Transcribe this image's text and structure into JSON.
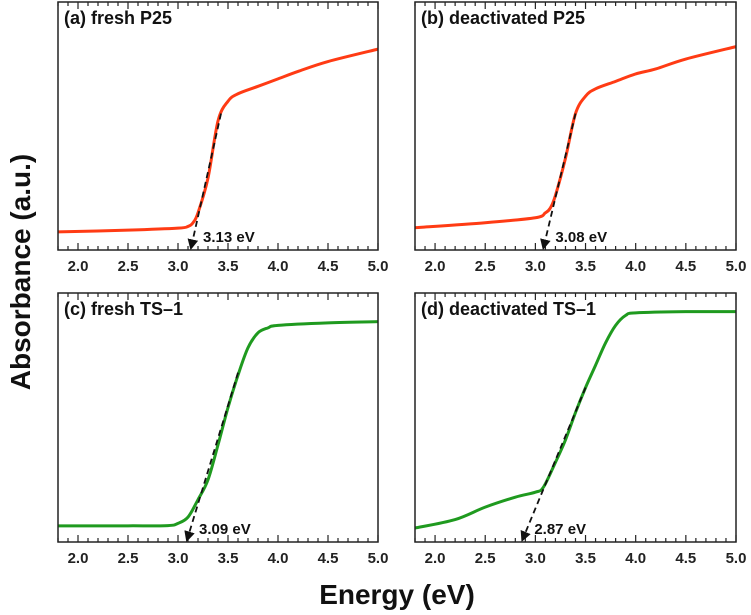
{
  "chart_data": [
    {
      "type": "line",
      "title": "(a) fresh P25",
      "color": "#ff3b14",
      "xlim": [
        1.8,
        5.0
      ],
      "ylim": [
        0,
        1
      ],
      "xticks": [
        "2.0",
        "2.5",
        "3.0",
        "3.5",
        "4.0",
        "4.5",
        "5.0"
      ],
      "x": [
        1.8,
        2.5,
        3.0,
        3.1,
        3.15,
        3.2,
        3.3,
        3.4,
        3.5,
        3.6,
        3.8,
        4.0,
        4.2,
        4.5,
        5.0
      ],
      "y": [
        0.073,
        0.08,
        0.088,
        0.095,
        0.11,
        0.15,
        0.29,
        0.52,
        0.6,
        0.63,
        0.66,
        0.69,
        0.72,
        0.76,
        0.81
      ],
      "band_gap": 3.13,
      "annotation": "3.13 eV",
      "tangent": [
        [
          3.13,
          0.0
        ],
        [
          3.43,
          0.55
        ]
      ]
    },
    {
      "type": "line",
      "title": "(b) deactivated P25",
      "color": "#ff3b14",
      "xlim": [
        1.8,
        5.0
      ],
      "ylim": [
        0,
        1
      ],
      "xticks": [
        "2.0",
        "2.5",
        "3.0",
        "3.5",
        "4.0",
        "4.5",
        "5.0"
      ],
      "x": [
        1.8,
        2.5,
        3.0,
        3.1,
        3.15,
        3.2,
        3.3,
        3.4,
        3.5,
        3.6,
        3.8,
        4.0,
        4.2,
        4.5,
        5.0
      ],
      "y": [
        0.09,
        0.11,
        0.13,
        0.15,
        0.17,
        0.22,
        0.37,
        0.55,
        0.62,
        0.65,
        0.68,
        0.71,
        0.73,
        0.77,
        0.82
      ],
      "band_gap": 3.08,
      "annotation": "3.08 eV",
      "tangent": [
        [
          3.08,
          0.0
        ],
        [
          3.4,
          0.55
        ]
      ]
    },
    {
      "type": "line",
      "title": "(c) fresh TS–1",
      "color": "#1f9a1f",
      "xlim": [
        1.8,
        5.0
      ],
      "ylim": [
        0,
        1
      ],
      "xticks": [
        "2.0",
        "2.5",
        "3.0",
        "3.5",
        "4.0",
        "4.5",
        "5.0"
      ],
      "x": [
        1.8,
        2.5,
        2.9,
        3.0,
        3.1,
        3.2,
        3.3,
        3.4,
        3.5,
        3.6,
        3.7,
        3.8,
        3.9,
        4.0,
        4.5,
        5.0
      ],
      "y": [
        0.065,
        0.065,
        0.066,
        0.075,
        0.1,
        0.17,
        0.25,
        0.39,
        0.54,
        0.67,
        0.78,
        0.84,
        0.86,
        0.87,
        0.88,
        0.885
      ],
      "band_gap": 3.09,
      "annotation": "3.09 eV",
      "tangent": [
        [
          3.09,
          0.0
        ],
        [
          3.6,
          0.68
        ]
      ]
    },
    {
      "type": "line",
      "title": "(d) deactivated TS–1",
      "color": "#1f9a1f",
      "xlim": [
        1.8,
        5.0
      ],
      "ylim": [
        0,
        1
      ],
      "xticks": [
        "2.0",
        "2.5",
        "3.0",
        "3.5",
        "4.0",
        "4.5",
        "5.0"
      ],
      "x": [
        1.8,
        2.2,
        2.5,
        2.8,
        3.0,
        3.08,
        3.2,
        3.3,
        3.4,
        3.5,
        3.6,
        3.7,
        3.8,
        3.9,
        4.0,
        4.5,
        5.0
      ],
      "y": [
        0.056,
        0.09,
        0.14,
        0.18,
        0.2,
        0.22,
        0.32,
        0.41,
        0.52,
        0.62,
        0.71,
        0.8,
        0.87,
        0.91,
        0.92,
        0.925,
        0.925
      ],
      "band_gap": 2.87,
      "annotation": "2.87 eV",
      "tangent": [
        [
          2.87,
          0.0
        ],
        [
          3.5,
          0.62
        ]
      ]
    }
  ],
  "xlabel": "Energy (eV)",
  "ylabel": "Absorbance (a.u.)"
}
